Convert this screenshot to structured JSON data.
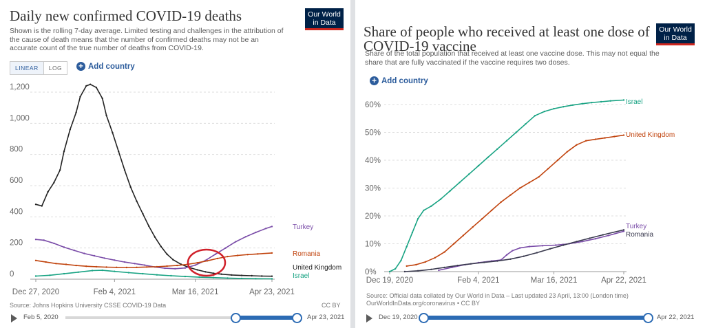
{
  "left": {
    "title": "Daily new confirmed COVID-19 deaths",
    "subtitle_lines": [
      "Shown is the rolling 7-day average. Limited testing and challenges in the attribution of",
      "the cause of death means that the number of confirmed deaths may not be an",
      "accurate count of the true number of deaths from COVID-19."
    ],
    "logo_lines": [
      "Our World",
      "in Data"
    ],
    "toggle": {
      "linear": "LINEAR",
      "log": "LOG"
    },
    "add_country": "Add country",
    "source": "Source: Johns Hopkins University CSSE COVID-19 Data",
    "license": "CC BY",
    "timeline": {
      "start": "Feb 5, 2020",
      "end": "Apr 23, 2021"
    }
  },
  "right": {
    "title_lines": [
      "Share of people who received at least one dose of",
      "COVID-19 vaccine"
    ],
    "subtitle_lines": [
      "Share of the total population that received at least one vaccine dose. This may not equal the",
      "share that are fully vaccinated if the vaccine requires two doses."
    ],
    "logo_lines": [
      "Our World",
      "in Data"
    ],
    "add_country": "Add country",
    "source_lines": [
      "Source: Official data collated by Our World in Data – Last updated 23 April, 13:00 (London time)",
      "OurWorldInData.org/coronavirus • CC BY"
    ],
    "timeline": {
      "start": "Dec 19, 2020",
      "end": "Apr 22, 2021"
    }
  },
  "chart_data": [
    {
      "type": "line",
      "title": "Daily new confirmed COVID-19 deaths",
      "x_start": "2020-12-27",
      "x_end": "2021-04-23",
      "xticks": [
        {
          "date": "2020-12-27",
          "label": "Dec 27, 2020"
        },
        {
          "date": "2021-02-04",
          "label": "Feb 4, 2021"
        },
        {
          "date": "2021-03-16",
          "label": "Mar 16, 2021"
        },
        {
          "date": "2021-04-23",
          "label": "Apr 23, 2021"
        }
      ],
      "ylim": [
        0,
        1200
      ],
      "yticks": [
        0,
        200,
        400,
        600,
        800,
        1000,
        1200
      ],
      "ytick_labels": [
        "0",
        "200",
        "400",
        "600",
        "800",
        "1,000",
        "1,200"
      ],
      "grid": true,
      "legend": "inline labels at line ends",
      "series": [
        {
          "name": "United Kingdom",
          "color": "#222222",
          "points": [
            [
              "2020-12-27",
              480
            ],
            [
              "2020-12-30",
              470
            ],
            [
              "2021-01-02",
              560
            ],
            [
              "2021-01-05",
              620
            ],
            [
              "2021-01-08",
              700
            ],
            [
              "2021-01-10",
              820
            ],
            [
              "2021-01-13",
              960
            ],
            [
              "2021-01-16",
              1070
            ],
            [
              "2021-01-18",
              1170
            ],
            [
              "2021-01-21",
              1240
            ],
            [
              "2021-01-23",
              1250
            ],
            [
              "2021-01-26",
              1230
            ],
            [
              "2021-01-29",
              1160
            ],
            [
              "2021-01-31",
              1050
            ],
            [
              "2021-02-03",
              940
            ],
            [
              "2021-02-06",
              820
            ],
            [
              "2021-02-09",
              700
            ],
            [
              "2021-02-12",
              590
            ],
            [
              "2021-02-15",
              500
            ],
            [
              "2021-02-18",
              420
            ],
            [
              "2021-02-21",
              340
            ],
            [
              "2021-02-24",
              270
            ],
            [
              "2021-02-27",
              210
            ],
            [
              "2021-03-02",
              160
            ],
            [
              "2021-03-05",
              125
            ],
            [
              "2021-03-09",
              95
            ],
            [
              "2021-03-13",
              75
            ],
            [
              "2021-03-17",
              60
            ],
            [
              "2021-03-21",
              47
            ],
            [
              "2021-03-25",
              38
            ],
            [
              "2021-03-29",
              32
            ],
            [
              "2021-04-03",
              27
            ],
            [
              "2021-04-08",
              24
            ],
            [
              "2021-04-13",
              22
            ],
            [
              "2021-04-18",
              20
            ],
            [
              "2021-04-23",
              19
            ]
          ]
        },
        {
          "name": "Turkey",
          "color": "#7a4ca8",
          "points": [
            [
              "2020-12-27",
              255
            ],
            [
              "2020-12-31",
              250
            ],
            [
              "2021-01-05",
              230
            ],
            [
              "2021-01-10",
              205
            ],
            [
              "2021-01-15",
              185
            ],
            [
              "2021-01-20",
              165
            ],
            [
              "2021-01-25",
              150
            ],
            [
              "2021-01-30",
              135
            ],
            [
              "2021-02-04",
              122
            ],
            [
              "2021-02-09",
              110
            ],
            [
              "2021-02-14",
              100
            ],
            [
              "2021-02-19",
              90
            ],
            [
              "2021-02-24",
              78
            ],
            [
              "2021-03-01",
              70
            ],
            [
              "2021-03-06",
              67
            ],
            [
              "2021-03-11",
              72
            ],
            [
              "2021-03-16",
              90
            ],
            [
              "2021-03-21",
              120
            ],
            [
              "2021-03-26",
              160
            ],
            [
              "2021-03-31",
              200
            ],
            [
              "2021-04-05",
              240
            ],
            [
              "2021-04-10",
              272
            ],
            [
              "2021-04-15",
              300
            ],
            [
              "2021-04-20",
              325
            ],
            [
              "2021-04-23",
              338
            ]
          ]
        },
        {
          "name": "Romania",
          "color": "#c1440e",
          "points": [
            [
              "2020-12-27",
              120
            ],
            [
              "2021-01-01",
              110
            ],
            [
              "2021-01-06",
              100
            ],
            [
              "2021-01-11",
              95
            ],
            [
              "2021-01-16",
              88
            ],
            [
              "2021-01-21",
              83
            ],
            [
              "2021-01-26",
              80
            ],
            [
              "2021-01-31",
              77
            ],
            [
              "2021-02-05",
              76
            ],
            [
              "2021-02-10",
              75
            ],
            [
              "2021-02-15",
              76
            ],
            [
              "2021-02-20",
              78
            ],
            [
              "2021-02-25",
              80
            ],
            [
              "2021-03-02",
              84
            ],
            [
              "2021-03-07",
              88
            ],
            [
              "2021-03-12",
              95
            ],
            [
              "2021-03-17",
              105
            ],
            [
              "2021-03-22",
              118
            ],
            [
              "2021-03-27",
              133
            ],
            [
              "2021-04-01",
              145
            ],
            [
              "2021-04-06",
              152
            ],
            [
              "2021-04-11",
              158
            ],
            [
              "2021-04-16",
              162
            ],
            [
              "2021-04-23",
              168
            ]
          ]
        },
        {
          "name": "Israel",
          "color": "#18a383",
          "points": [
            [
              "2020-12-27",
              20
            ],
            [
              "2021-01-03",
              25
            ],
            [
              "2021-01-10",
              35
            ],
            [
              "2021-01-17",
              45
            ],
            [
              "2021-01-24",
              55
            ],
            [
              "2021-01-29",
              57
            ],
            [
              "2021-02-04",
              50
            ],
            [
              "2021-02-11",
              42
            ],
            [
              "2021-02-18",
              35
            ],
            [
              "2021-02-25",
              28
            ],
            [
              "2021-03-04",
              22
            ],
            [
              "2021-03-11",
              17
            ],
            [
              "2021-03-18",
              13
            ],
            [
              "2021-03-25",
              10
            ],
            [
              "2021-04-01",
              7
            ],
            [
              "2021-04-08",
              5
            ],
            [
              "2021-04-15",
              3
            ],
            [
              "2021-04-23",
              2
            ]
          ]
        }
      ],
      "annotation": "red circle around the lines crossing near Mar 16, 2021"
    },
    {
      "type": "line",
      "title": "Share of people who received at least one dose of COVID-19 vaccine",
      "x_start": "2020-12-19",
      "x_end": "2021-04-22",
      "xticks": [
        {
          "date": "2020-12-19",
          "label": "Dec 19, 2020"
        },
        {
          "date": "2021-02-04",
          "label": "Feb 4, 2021"
        },
        {
          "date": "2021-03-16",
          "label": "Mar 16, 2021"
        },
        {
          "date": "2021-04-22",
          "label": "Apr 22, 2021"
        }
      ],
      "ylim": [
        0,
        60
      ],
      "yticks": [
        0,
        10,
        20,
        30,
        40,
        50,
        60
      ],
      "ytick_labels": [
        "0%",
        "10%",
        "20%",
        "30%",
        "40%",
        "50%",
        "60%"
      ],
      "grid": true,
      "legend": "inline labels at line ends",
      "series": [
        {
          "name": "Israel",
          "color": "#18a383",
          "points": [
            [
              "2020-12-19",
              0
            ],
            [
              "2020-12-22",
              1
            ],
            [
              "2020-12-25",
              4
            ],
            [
              "2020-12-28",
              9
            ],
            [
              "2020-12-31",
              14
            ],
            [
              "2021-01-03",
              19
            ],
            [
              "2021-01-06",
              22
            ],
            [
              "2021-01-10",
              23.5
            ],
            [
              "2021-01-15",
              26
            ],
            [
              "2021-01-20",
              29
            ],
            [
              "2021-01-25",
              32
            ],
            [
              "2021-01-30",
              35
            ],
            [
              "2021-02-04",
              38
            ],
            [
              "2021-02-09",
              41
            ],
            [
              "2021-02-14",
              44
            ],
            [
              "2021-02-19",
              47
            ],
            [
              "2021-02-24",
              50
            ],
            [
              "2021-03-01",
              53
            ],
            [
              "2021-03-06",
              56
            ],
            [
              "2021-03-11",
              57.5
            ],
            [
              "2021-03-16",
              58.5
            ],
            [
              "2021-03-21",
              59.2
            ],
            [
              "2021-03-26",
              59.8
            ],
            [
              "2021-03-31",
              60.3
            ],
            [
              "2021-04-05",
              60.7
            ],
            [
              "2021-04-10",
              61
            ],
            [
              "2021-04-15",
              61.3
            ],
            [
              "2021-04-22",
              61.6
            ]
          ]
        },
        {
          "name": "United Kingdom",
          "color": "#c1440e",
          "points": [
            [
              "2020-12-28",
              2
            ],
            [
              "2021-01-02",
              2.5
            ],
            [
              "2021-01-07",
              3.5
            ],
            [
              "2021-01-12",
              5
            ],
            [
              "2021-01-17",
              7
            ],
            [
              "2021-01-22",
              10
            ],
            [
              "2021-01-27",
              13
            ],
            [
              "2021-02-01",
              16
            ],
            [
              "2021-02-06",
              19
            ],
            [
              "2021-02-11",
              22
            ],
            [
              "2021-02-16",
              25
            ],
            [
              "2021-02-21",
              27.5
            ],
            [
              "2021-02-26",
              30
            ],
            [
              "2021-03-03",
              32
            ],
            [
              "2021-03-08",
              34
            ],
            [
              "2021-03-13",
              37
            ],
            [
              "2021-03-18",
              40
            ],
            [
              "2021-03-23",
              43
            ],
            [
              "2021-03-28",
              45.5
            ],
            [
              "2021-04-02",
              47
            ],
            [
              "2021-04-07",
              47.5
            ],
            [
              "2021-04-12",
              48
            ],
            [
              "2021-04-17",
              48.5
            ],
            [
              "2021-04-22",
              49
            ]
          ]
        },
        {
          "name": "Turkey",
          "color": "#7a4ca8",
          "points": [
            [
              "2021-01-14",
              0.5
            ],
            [
              "2021-01-21",
              1.5
            ],
            [
              "2021-01-28",
              2.5
            ],
            [
              "2021-02-04",
              3.2
            ],
            [
              "2021-02-11",
              3.8
            ],
            [
              "2021-02-16",
              4.2
            ],
            [
              "2021-02-19",
              6
            ],
            [
              "2021-02-22",
              7.5
            ],
            [
              "2021-02-26",
              8.5
            ],
            [
              "2021-03-03",
              9
            ],
            [
              "2021-03-10",
              9.3
            ],
            [
              "2021-03-17",
              9.5
            ],
            [
              "2021-03-24",
              10
            ],
            [
              "2021-03-31",
              10.8
            ],
            [
              "2021-04-07",
              11.8
            ],
            [
              "2021-04-14",
              13
            ],
            [
              "2021-04-22",
              14.5
            ]
          ]
        },
        {
          "name": "Romania",
          "color": "#3a3a4f",
          "points": [
            [
              "2020-12-27",
              0
            ],
            [
              "2021-01-03",
              0.3
            ],
            [
              "2021-01-10",
              0.8
            ],
            [
              "2021-01-17",
              1.5
            ],
            [
              "2021-01-24",
              2.2
            ],
            [
              "2021-01-31",
              2.8
            ],
            [
              "2021-02-07",
              3.3
            ],
            [
              "2021-02-14",
              3.8
            ],
            [
              "2021-02-21",
              4.5
            ],
            [
              "2021-02-28",
              5.5
            ],
            [
              "2021-03-07",
              6.8
            ],
            [
              "2021-03-14",
              8.2
            ],
            [
              "2021-03-21",
              9.5
            ],
            [
              "2021-03-28",
              10.8
            ],
            [
              "2021-04-04",
              12
            ],
            [
              "2021-04-11",
              13.2
            ],
            [
              "2021-04-22",
              15
            ]
          ]
        }
      ]
    }
  ]
}
